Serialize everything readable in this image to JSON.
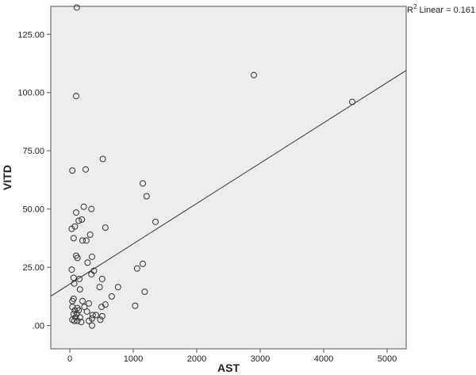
{
  "chart_data": {
    "type": "scatter",
    "title": "",
    "xlabel": "AST",
    "ylabel": "VITD",
    "xlim": [
      -300,
      5300
    ],
    "ylim": [
      -10,
      137
    ],
    "x_ticks": [
      0,
      1000,
      2000,
      3000,
      4000,
      5000
    ],
    "x_tick_labels": [
      "0",
      "1000",
      "2000",
      "3000",
      "4000",
      "5000"
    ],
    "y_ticks": [
      0,
      25,
      50,
      75,
      100,
      125
    ],
    "y_tick_labels": [
      ".00",
      "25.00",
      "50.00",
      "75.00",
      "100.00",
      "125.00"
    ],
    "grid": false,
    "plot_background": "#ededed",
    "point_color": "#333333",
    "line_color": "#333333",
    "fit_line": {
      "type": "linear",
      "r2_label": "R",
      "r2_sup": "2",
      "r2_text": " Linear = 0.161",
      "points": [
        [
          -300,
          12.6
        ],
        [
          5300,
          109.5
        ]
      ]
    },
    "points": [
      [
        110,
        136.5
      ],
      [
        2900,
        107.5
      ],
      [
        4450,
        96
      ],
      [
        100,
        98.5
      ],
      [
        520,
        71.5
      ],
      [
        40,
        66.5
      ],
      [
        250,
        67
      ],
      [
        1150,
        61
      ],
      [
        1210,
        55.5
      ],
      [
        220,
        51
      ],
      [
        340,
        50
      ],
      [
        100,
        48.5
      ],
      [
        140,
        45
      ],
      [
        190,
        45.5
      ],
      [
        1350,
        44.5
      ],
      [
        30,
        41.5
      ],
      [
        80,
        42.5
      ],
      [
        560,
        42
      ],
      [
        320,
        39
      ],
      [
        60,
        37.5
      ],
      [
        200,
        36.5
      ],
      [
        260,
        36.5
      ],
      [
        100,
        30
      ],
      [
        120,
        29
      ],
      [
        350,
        29.5
      ],
      [
        280,
        27
      ],
      [
        1150,
        26.5
      ],
      [
        30,
        24
      ],
      [
        1060,
        24.5
      ],
      [
        380,
        23.5
      ],
      [
        340,
        22
      ],
      [
        60,
        20.5
      ],
      [
        150,
        20
      ],
      [
        510,
        20
      ],
      [
        70,
        18
      ],
      [
        470,
        16.5
      ],
      [
        760,
        16.5
      ],
      [
        160,
        15.5
      ],
      [
        1180,
        14.5
      ],
      [
        660,
        12.5
      ],
      [
        60,
        11.5
      ],
      [
        40,
        10.5
      ],
      [
        200,
        10.5
      ],
      [
        300,
        9.5
      ],
      [
        1030,
        8.5
      ],
      [
        560,
        9
      ],
      [
        40,
        8
      ],
      [
        120,
        7.5
      ],
      [
        230,
        8
      ],
      [
        500,
        8
      ],
      [
        80,
        6.5
      ],
      [
        140,
        6.5
      ],
      [
        270,
        6
      ],
      [
        60,
        5
      ],
      [
        110,
        5
      ],
      [
        360,
        4.5
      ],
      [
        410,
        4.5
      ],
      [
        510,
        4
      ],
      [
        90,
        3.5
      ],
      [
        160,
        3.5
      ],
      [
        350,
        3
      ],
      [
        40,
        2.5
      ],
      [
        70,
        2
      ],
      [
        120,
        2
      ],
      [
        300,
        2
      ],
      [
        480,
        2.5
      ],
      [
        180,
        1.5
      ],
      [
        350,
        0
      ]
    ]
  }
}
